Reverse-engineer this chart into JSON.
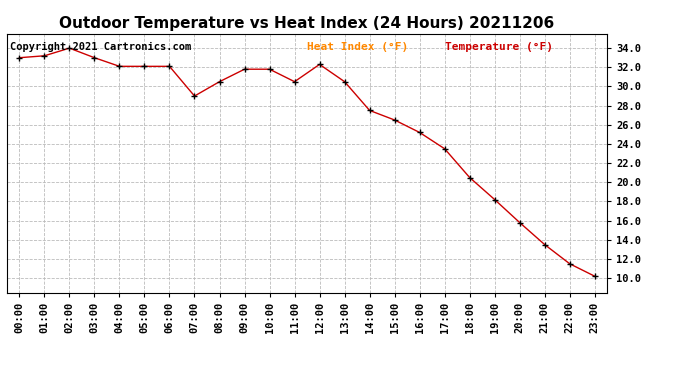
{
  "title": "Outdoor Temperature vs Heat Index (24 Hours) 20211206",
  "copyright_text": "Copyright 2021 Cartronics.com",
  "x_labels": [
    "00:00",
    "01:00",
    "02:00",
    "03:00",
    "04:00",
    "05:00",
    "06:00",
    "07:00",
    "08:00",
    "09:00",
    "10:00",
    "11:00",
    "12:00",
    "13:00",
    "14:00",
    "15:00",
    "16:00",
    "17:00",
    "18:00",
    "19:00",
    "20:00",
    "21:00",
    "22:00",
    "23:00"
  ],
  "temperature_values": [
    33.0,
    33.2,
    34.0,
    33.0,
    32.1,
    32.1,
    32.1,
    29.0,
    30.5,
    31.8,
    31.8,
    30.5,
    32.3,
    30.5,
    27.5,
    26.5,
    25.2,
    23.5,
    20.5,
    18.2,
    15.8,
    13.5,
    11.5,
    10.2
  ],
  "line_color": "#cc0000",
  "marker_color": "#000000",
  "background_color": "#ffffff",
  "grid_color": "#bbbbbb",
  "title_color": "#000000",
  "heat_index_legend_color": "#ff8800",
  "temperature_legend_color": "#cc0000",
  "ylim_min": 8.5,
  "ylim_max": 35.5,
  "yticks": [
    10.0,
    12.0,
    14.0,
    16.0,
    18.0,
    20.0,
    22.0,
    24.0,
    26.0,
    28.0,
    30.0,
    32.0,
    34.0
  ],
  "title_fontsize": 11,
  "tick_fontsize": 7.5,
  "legend_fontsize": 8,
  "copyright_fontsize": 7.5
}
